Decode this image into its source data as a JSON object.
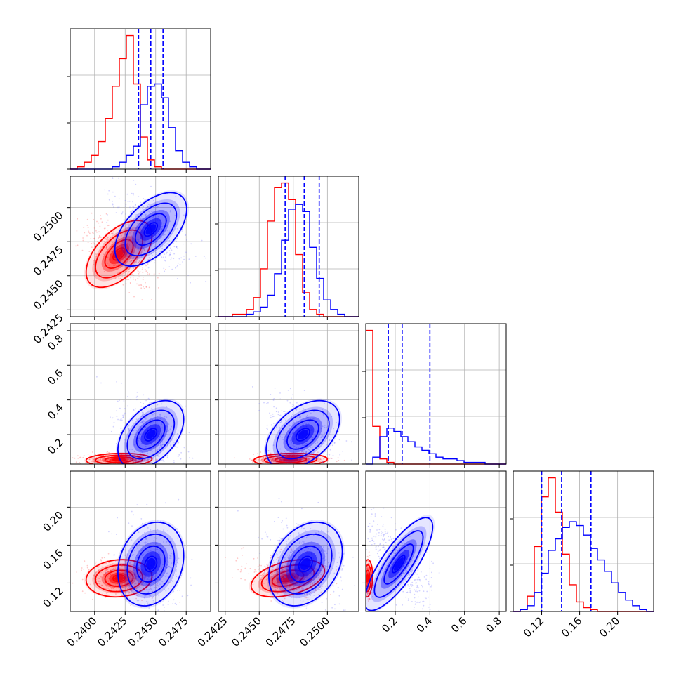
{
  "chart_data": {
    "type": "corner",
    "grid": true,
    "colors": {
      "run_a": "#ff0000",
      "run_b": "#0000ff",
      "grid": "#b0b0b0"
    },
    "params": [
      {
        "range": [
          0.238,
          0.2495
        ],
        "ticks": [
          0.24,
          0.2425,
          0.245,
          0.2475
        ],
        "tick_labels": [
          "0.2400",
          "0.2425",
          "0.2450",
          "0.2475"
        ],
        "quantiles_b": [
          0.2436,
          0.2446,
          0.2456
        ]
      },
      {
        "range": [
          0.242,
          0.2523
        ],
        "ticks": [
          0.2425,
          0.245,
          0.2475,
          0.25
        ],
        "tick_labels": [
          "0.2425",
          "0.2450",
          "0.2475",
          "0.2500"
        ],
        "quantiles_b": [
          0.2469,
          0.2483,
          0.2494
        ]
      },
      {
        "range": [
          0.03,
          0.84
        ],
        "ticks": [
          0.2,
          0.4,
          0.6,
          0.8
        ],
        "tick_labels": [
          "0.2",
          "0.4",
          "0.6",
          "0.8"
        ],
        "quantiles_b": [
          0.16,
          0.24,
          0.4
        ]
      },
      {
        "range": [
          0.09,
          0.238
        ],
        "ticks": [
          0.12,
          0.16,
          0.2
        ],
        "tick_labels": [
          "0.12",
          "0.16",
          "0.20"
        ],
        "quantiles_b": [
          0.12,
          0.141,
          0.172
        ]
      }
    ],
    "marginals": [
      {
        "a": {
          "edges": [
            0.238,
            0.2495
          ],
          "values": [
            0,
            1,
            3,
            6,
            12,
            22,
            36,
            48,
            58,
            37,
            14,
            4,
            1,
            0,
            0,
            0,
            0,
            0,
            0,
            0
          ]
        },
        "b": {
          "edges": [
            0.238,
            0.2495
          ],
          "values": [
            0,
            0,
            0,
            0,
            0,
            0,
            1,
            3,
            6,
            10,
            28,
            36,
            37,
            31,
            18,
            8,
            3,
            1,
            0,
            0
          ]
        }
      },
      {
        "a": {
          "edges": [
            0.242,
            0.2523
          ],
          "values": [
            0,
            0,
            1,
            1,
            3,
            8,
            20,
            40,
            54,
            56,
            49,
            26,
            10,
            3,
            1,
            0,
            0,
            0,
            0,
            0
          ]
        },
        "b": {
          "edges": [
            0.242,
            0.2523
          ],
          "values": [
            0,
            0,
            0,
            0,
            1,
            2,
            4,
            9,
            18,
            32,
            45,
            47,
            44,
            29,
            16,
            7,
            3,
            1,
            0,
            0
          ]
        }
      },
      {
        "a": {
          "edges": [
            0.03,
            0.84
          ],
          "values": [
            78,
            22,
            3,
            1,
            0,
            0,
            0,
            0,
            0,
            0,
            0,
            0,
            0,
            0,
            0,
            0,
            0,
            0,
            0,
            0
          ]
        },
        "b": {
          "edges": [
            0.03,
            0.84
          ],
          "values": [
            0,
            4,
            16,
            21,
            19,
            16,
            13,
            10,
            8,
            6,
            4,
            3,
            3,
            2,
            1,
            1,
            1,
            0,
            0,
            0
          ]
        }
      },
      {
        "a": {
          "edges": [
            0.09,
            0.238
          ],
          "values": [
            0,
            1,
            8,
            34,
            60,
            70,
            52,
            30,
            14,
            5,
            2,
            1,
            0,
            0,
            0,
            0,
            0,
            0,
            0,
            0
          ]
        },
        "b": {
          "edges": [
            0.09,
            0.238
          ],
          "values": [
            0,
            1,
            3,
            10,
            20,
            32,
            38,
            44,
            47,
            45,
            40,
            33,
            27,
            21,
            15,
            10,
            6,
            3,
            1,
            0
          ]
        }
      }
    ],
    "pairs": [
      {
        "row": 1,
        "col": 0,
        "a": {
          "mean": [
            0.242,
            0.2466
          ],
          "sd": [
            0.0011,
            0.001
          ],
          "rho": 0.55
        },
        "b": {
          "mean": [
            0.2446,
            0.2484
          ],
          "sd": [
            0.0012,
            0.0011
          ],
          "rho": 0.55
        }
      },
      {
        "row": 2,
        "col": 0,
        "a": {
          "mean": [
            0.242,
            0.055
          ],
          "sd": [
            0.0011,
            0.015
          ],
          "rho": 0.1
        },
        "b": {
          "mean": [
            0.2446,
            0.2
          ],
          "sd": [
            0.0011,
            0.08
          ],
          "rho": 0.45
        }
      },
      {
        "row": 2,
        "col": 1,
        "a": {
          "mean": [
            0.2473,
            0.055
          ],
          "sd": [
            0.0011,
            0.015
          ],
          "rho": 0.1
        },
        "b": {
          "mean": [
            0.2482,
            0.2
          ],
          "sd": [
            0.0011,
            0.08
          ],
          "rho": 0.45
        }
      },
      {
        "row": 3,
        "col": 0,
        "a": {
          "mean": [
            0.242,
            0.125
          ],
          "sd": [
            0.0011,
            0.008
          ],
          "rho": 0.1
        },
        "b": {
          "mean": [
            0.2446,
            0.14
          ],
          "sd": [
            0.0011,
            0.018
          ],
          "rho": 0.2
        }
      },
      {
        "row": 3,
        "col": 1,
        "a": {
          "mean": [
            0.2471,
            0.125
          ],
          "sd": [
            0.0011,
            0.008
          ],
          "rho": 0.4
        },
        "b": {
          "mean": [
            0.2484,
            0.14
          ],
          "sd": [
            0.0011,
            0.018
          ],
          "rho": 0.3
        }
      },
      {
        "row": 3,
        "col": 2,
        "a": {
          "mean": [
            0.04,
            0.125
          ],
          "sd": [
            0.012,
            0.008
          ],
          "rho": 0.1
        },
        "b": {
          "mean": [
            0.22,
            0.14
          ],
          "sd": [
            0.08,
            0.02
          ],
          "rho": 0.8
        }
      }
    ]
  }
}
